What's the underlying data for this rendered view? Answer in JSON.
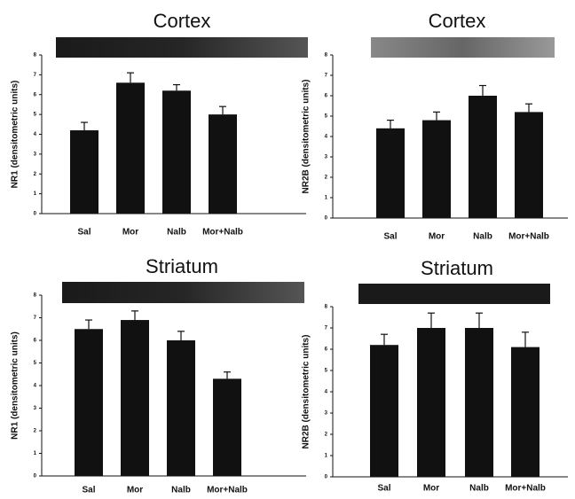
{
  "chart_data": [
    {
      "type": "bar",
      "title": "Cortex",
      "y_label": "NR1 (densitometric units)",
      "categories": [
        "Sal",
        "Mor",
        "Nalb",
        "Mor+Nalb"
      ],
      "values": [
        4.2,
        6.6,
        6.2,
        5.0
      ],
      "errors": [
        0.4,
        0.5,
        0.3,
        0.4
      ],
      "color": "#111111",
      "ylim": [
        0,
        8
      ],
      "yticks": [
        0,
        1,
        2,
        3,
        4,
        5,
        6,
        7,
        8
      ]
    },
    {
      "type": "bar",
      "title": "Cortex",
      "y_label": "NR2B (densitometric units)",
      "categories": [
        "Sal",
        "Mor",
        "Nalb",
        "Mor+Nalb"
      ],
      "values": [
        4.4,
        4.8,
        6.0,
        5.2
      ],
      "errors": [
        0.4,
        0.4,
        0.5,
        0.4
      ],
      "color": "#111111",
      "ylim": [
        0,
        8
      ],
      "yticks": [
        0,
        1,
        2,
        3,
        4,
        5,
        6,
        7,
        8
      ]
    },
    {
      "type": "bar",
      "title": "Striatum",
      "y_label": "NR1 (densitometric units)",
      "categories": [
        "Sal",
        "Mor",
        "Nalb",
        "Mor+Nalb"
      ],
      "values": [
        6.5,
        6.9,
        6.0,
        4.3
      ],
      "errors": [
        0.4,
        0.4,
        0.4,
        0.3
      ],
      "color": "#111111",
      "ylim": [
        0,
        8
      ],
      "yticks": [
        0,
        1,
        2,
        3,
        4,
        5,
        6,
        7,
        8
      ]
    },
    {
      "type": "bar",
      "title": "Striatum",
      "y_label": "NR2B (densitometric units)",
      "categories": [
        "Sal",
        "Mor",
        "Nalb",
        "Mor+Nalb"
      ],
      "values": [
        6.2,
        7.0,
        7.0,
        6.1
      ],
      "errors": [
        0.5,
        0.7,
        0.7,
        0.7
      ],
      "color": "#111111",
      "ylim": [
        0,
        8
      ],
      "yticks": [
        0,
        1,
        2,
        3,
        4,
        5,
        6,
        7,
        8
      ]
    }
  ]
}
